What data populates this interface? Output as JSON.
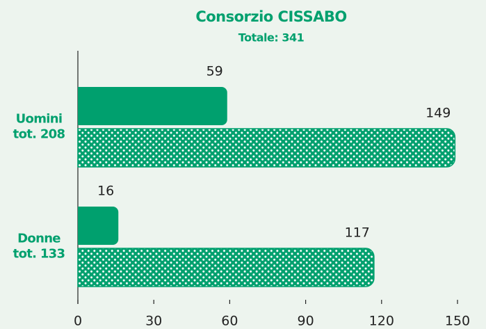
{
  "chart_data": {
    "type": "hbar",
    "title": "Consorzio CISSABO",
    "subtitle": "Totale: 341",
    "categories": [
      [
        "Uomini",
        "tot. 208"
      ],
      [
        "Donne",
        "tot. 133"
      ]
    ],
    "series": [
      {
        "color": "#00a06e",
        "style": "solid",
        "values": [
          59,
          16
        ]
      },
      {
        "color": "#00a06e",
        "style": "dotted",
        "values": [
          149,
          117
        ]
      }
    ],
    "xlim": [
      0,
      150
    ],
    "xticks": [
      0,
      30,
      60,
      90,
      120,
      150
    ],
    "text_color": "#00a06e"
  }
}
